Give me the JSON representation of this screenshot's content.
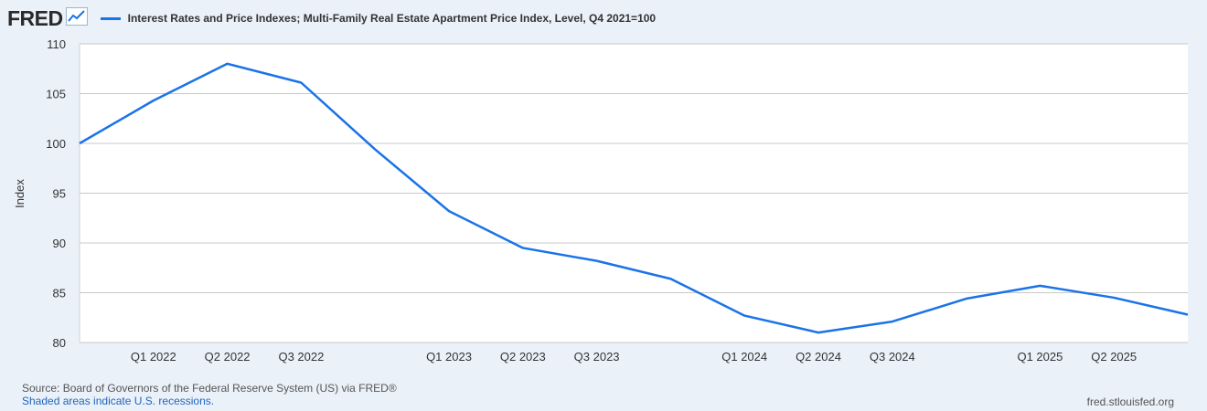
{
  "brand": {
    "logo_text": "FRED"
  },
  "legend": {
    "series_label": "Interest Rates and Price Indexes; Multi-Family Real Estate Apartment Price Index, Level, Q4 2021=100",
    "color": "#1a73e8"
  },
  "footer": {
    "source": "Source: Board of Governors of the Federal Reserve System (US) via FRED®",
    "recessions_note": "Shaded areas indicate U.S. recessions.",
    "site": "fred.stlouisfed.org"
  },
  "chart_data": {
    "type": "line",
    "title": "",
    "ylabel": "Index",
    "xlabel": "",
    "ylim": [
      80,
      110
    ],
    "yticks": [
      80,
      85,
      90,
      95,
      100,
      105,
      110
    ],
    "x_quarter_index_range": [
      0,
      15
    ],
    "xtick_labels": [
      {
        "label": "Q1 2022",
        "at": 1
      },
      {
        "label": "Q2 2022",
        "at": 2
      },
      {
        "label": "Q3 2022",
        "at": 3
      },
      {
        "label": "Q1 2023",
        "at": 5
      },
      {
        "label": "Q2 2023",
        "at": 6
      },
      {
        "label": "Q3 2023",
        "at": 7
      },
      {
        "label": "Q1 2024",
        "at": 9
      },
      {
        "label": "Q2 2024",
        "at": 10
      },
      {
        "label": "Q3 2024",
        "at": 11
      },
      {
        "label": "Q1 2025",
        "at": 13
      },
      {
        "label": "Q2 2025",
        "at": 14
      }
    ],
    "grid": true,
    "series": [
      {
        "name": "Multi-Family Real Estate Apartment Price Index",
        "color": "#1a73e8",
        "x": [
          "Q4 2021",
          "Q1 2022",
          "Q2 2022",
          "Q3 2022",
          "Q4 2022",
          "Q1 2023",
          "Q2 2023",
          "Q3 2023",
          "Q4 2023",
          "Q1 2024",
          "Q2 2024",
          "Q3 2024",
          "Q4 2024",
          "Q1 2025",
          "Q2 2025",
          "Q3 2025"
        ],
        "values": [
          100.0,
          104.3,
          108.0,
          106.1,
          99.4,
          93.2,
          89.5,
          88.2,
          86.4,
          82.7,
          81.0,
          82.1,
          84.4,
          85.7,
          84.5,
          82.8
        ]
      }
    ]
  }
}
